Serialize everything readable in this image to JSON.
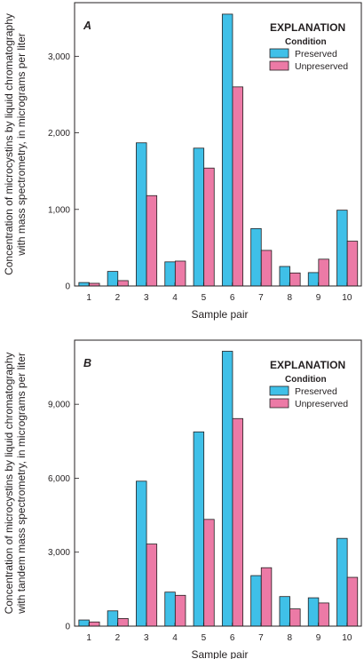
{
  "chart_data": [
    {
      "type": "bar",
      "panel_label": "A",
      "categories": [
        "1",
        "2",
        "3",
        "4",
        "5",
        "6",
        "7",
        "8",
        "9",
        "10"
      ],
      "series": [
        {
          "name": "Preserved",
          "color": "#3fc0e8",
          "values": [
            45,
            190,
            1870,
            315,
            1800,
            3550,
            750,
            255,
            175,
            990
          ]
        },
        {
          "name": "Unpreserved",
          "color": "#ec7aa6",
          "values": [
            35,
            70,
            1180,
            325,
            1540,
            2600,
            465,
            170,
            350,
            585
          ]
        }
      ],
      "xlabel": "Sample pair",
      "ylabel_lines": [
        "Concentration of microcystins by liquid chromatography",
        "with mass spectrometry, in micrograms per liter"
      ],
      "yticks": [
        0,
        1000,
        2000,
        3000
      ],
      "ytick_labels": [
        "0",
        "1,000",
        "2,000",
        "3,000"
      ],
      "ylim": [
        0,
        3700
      ],
      "legend": {
        "title": "EXPLANATION",
        "subtitle": "Condition",
        "placement": "top-right"
      },
      "grid": false
    },
    {
      "type": "bar",
      "panel_label": "B",
      "categories": [
        "1",
        "2",
        "3",
        "4",
        "5",
        "6",
        "7",
        "8",
        "9",
        "10"
      ],
      "series": [
        {
          "name": "Preserved",
          "color": "#3fc0e8",
          "values": [
            250,
            620,
            5880,
            1380,
            7880,
            11150,
            2050,
            1200,
            1150,
            3560
          ]
        },
        {
          "name": "Unpreserved",
          "color": "#ec7aa6",
          "values": [
            170,
            310,
            3330,
            1250,
            4330,
            8420,
            2370,
            700,
            940,
            1980
          ]
        }
      ],
      "xlabel": "Sample pair",
      "ylabel_lines": [
        "Concentration of microcystins by liquid chromatography",
        "with tandem mass spectrometry, in micrograms per liter"
      ],
      "yticks": [
        0,
        3000,
        6000,
        9000
      ],
      "ytick_labels": [
        "0",
        "3,000",
        "6,000",
        "9,000"
      ],
      "ylim": [
        0,
        11600
      ],
      "legend": {
        "title": "EXPLANATION",
        "subtitle": "Condition",
        "placement": "top-right"
      },
      "grid": false
    }
  ]
}
